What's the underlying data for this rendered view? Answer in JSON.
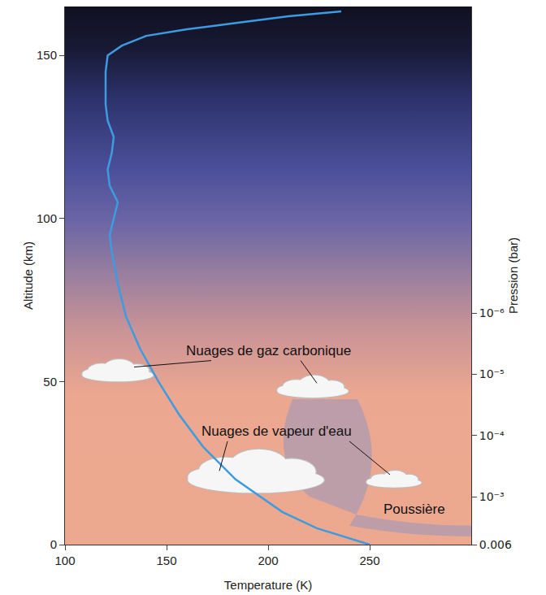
{
  "chart_data": {
    "type": "line",
    "x_label": "Temperature (K)",
    "y_label": "Altitude (km)",
    "y2_label": "Pression (bar)",
    "x": [
      250,
      224,
      207,
      184,
      168,
      156,
      146,
      137,
      130,
      126,
      123,
      122,
      124,
      126,
      122,
      121,
      123,
      124,
      121,
      120,
      120,
      120,
      121,
      128,
      140,
      160,
      185,
      210,
      236
    ],
    "y": [
      0,
      5,
      10,
      20,
      30,
      40,
      50,
      60,
      70,
      80,
      90,
      95,
      100,
      105,
      110,
      115,
      120,
      125,
      130,
      135,
      140,
      145,
      150,
      153,
      156,
      158,
      160,
      162,
      163.5
    ],
    "color": "#3d9be0",
    "xlim": [
      100,
      300
    ],
    "xticks": [
      100,
      150,
      200,
      250
    ],
    "ylim": [
      0,
      165
    ],
    "yticks": [
      0,
      50,
      100,
      150
    ],
    "y2lim": [
      0.006,
      1e-11
    ],
    "y2ticks": [
      0.006,
      {
        "value": 0.001,
        "label": "10⁻³"
      },
      {
        "value": 0.0001,
        "label": "10⁻⁴"
      },
      {
        "value": 1e-05,
        "label": "10⁻⁵"
      },
      {
        "value": 1e-06,
        "label": "10⁻⁶"
      }
    ],
    "log": "y2",
    "grid": false,
    "annotations": [
      "Nuages de gaz carbonique",
      "Nuages de vapeur d'eau",
      "Poussière"
    ]
  }
}
